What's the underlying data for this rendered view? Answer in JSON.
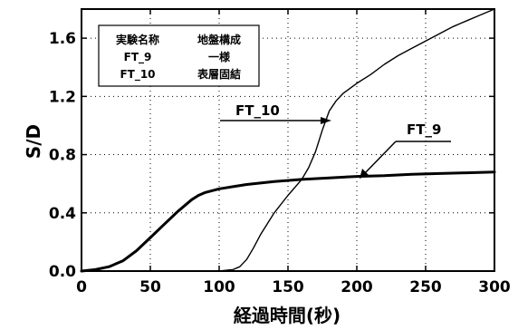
{
  "chart_data": {
    "type": "line",
    "xlabel": "経過時間(秒)",
    "ylabel": "S/D",
    "xlim": [
      0,
      300
    ],
    "ylim": [
      0,
      1.8
    ],
    "xticks": [
      0,
      50,
      100,
      150,
      200,
      250,
      300
    ],
    "yticks": [
      0.0,
      0.4,
      0.8,
      1.2,
      1.6
    ],
    "xtick_labels": [
      "0",
      "50",
      "100",
      "150",
      "200",
      "250",
      "300"
    ],
    "ytick_labels": [
      "0.0",
      "0.4",
      "0.8",
      "1.2",
      "1.6"
    ],
    "grid": true,
    "legend_table": {
      "header": [
        "実験名称",
        "地盤構成"
      ],
      "rows": [
        [
          "FT_9",
          "一様"
        ],
        [
          "FT_10",
          "表層固結"
        ]
      ]
    },
    "annotations": [
      {
        "text": "FT_10",
        "series": "FT_10"
      },
      {
        "text": "FT_9",
        "series": "FT_9"
      }
    ],
    "series": [
      {
        "name": "FT_9",
        "color": "#000000",
        "x": [
          0,
          10,
          20,
          30,
          40,
          50,
          60,
          70,
          80,
          85,
          90,
          100,
          110,
          120,
          140,
          160,
          180,
          200,
          220,
          240,
          260,
          280,
          300
        ],
        "y": [
          0.0,
          0.01,
          0.03,
          0.07,
          0.14,
          0.23,
          0.32,
          0.41,
          0.49,
          0.52,
          0.54,
          0.565,
          0.58,
          0.595,
          0.615,
          0.63,
          0.64,
          0.65,
          0.655,
          0.665,
          0.67,
          0.675,
          0.68
        ]
      },
      {
        "name": "FT_10",
        "color": "#000000",
        "x": [
          0,
          50,
          100,
          110,
          115,
          120,
          125,
          130,
          140,
          150,
          160,
          165,
          170,
          175,
          180,
          185,
          190,
          200,
          210,
          220,
          230,
          240,
          250,
          260,
          270,
          280,
          290,
          300
        ],
        "y": [
          0.0,
          0.0,
          0.0,
          0.01,
          0.03,
          0.08,
          0.16,
          0.25,
          0.4,
          0.52,
          0.63,
          0.71,
          0.82,
          0.97,
          1.1,
          1.17,
          1.22,
          1.29,
          1.35,
          1.42,
          1.48,
          1.53,
          1.58,
          1.63,
          1.68,
          1.72,
          1.76,
          1.8
        ]
      }
    ]
  }
}
